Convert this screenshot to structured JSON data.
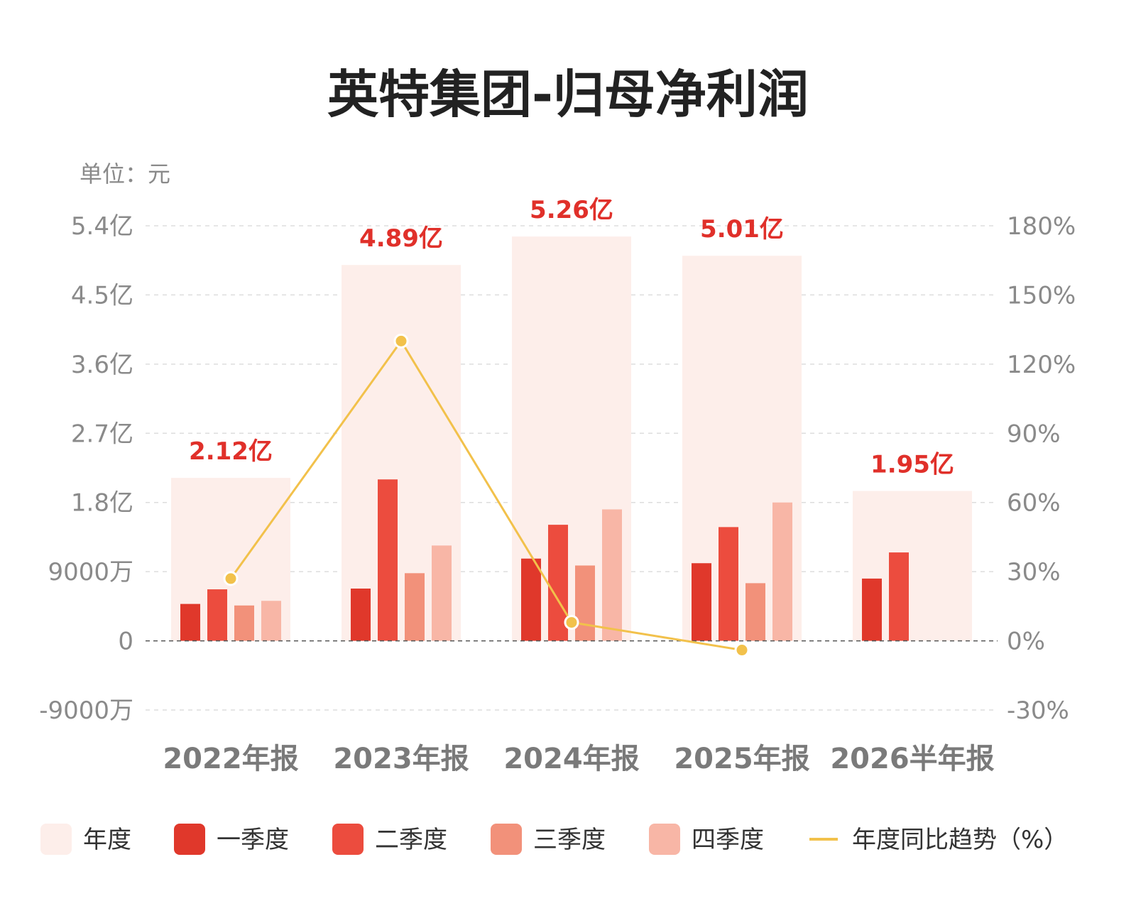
{
  "chart_data": {
    "type": "bar",
    "title": "英特集团-归母净利润",
    "unit_label": "单位：元",
    "categories": [
      "2022年报",
      "2023年报",
      "2024年报",
      "2025年报",
      "2026半年报"
    ],
    "annual": {
      "name": "年度",
      "values": [
        212000000,
        489000000,
        526000000,
        501000000,
        195000000
      ],
      "labels": [
        "2.12亿",
        "4.89亿",
        "5.26亿",
        "5.01亿",
        "1.95亿"
      ]
    },
    "series": [
      {
        "name": "一季度",
        "values": [
          48000000,
          68000000,
          107000000,
          101000000,
          81000000
        ]
      },
      {
        "name": "二季度",
        "values": [
          67000000,
          210000000,
          151000000,
          148000000,
          115000000
        ]
      },
      {
        "name": "三季度",
        "values": [
          46000000,
          88000000,
          98000000,
          75000000,
          null
        ]
      },
      {
        "name": "四季度",
        "values": [
          52000000,
          124000000,
          171000000,
          180000000,
          null
        ]
      }
    ],
    "yoy": {
      "name": "年度同比趋势（%）",
      "values": [
        27,
        130,
        8,
        -4,
        null
      ]
    },
    "y_ticks": [
      "-9000万",
      "0",
      "9000万",
      "1.8亿",
      "2.7亿",
      "3.6亿",
      "4.5亿",
      "5.4亿"
    ],
    "y_tick_values": [
      -90000000,
      0,
      90000000,
      180000000,
      270000000,
      360000000,
      450000000,
      540000000
    ],
    "ylim": [
      -90000000,
      540000000
    ],
    "y2_ticks": [
      "-30%",
      "0%",
      "30%",
      "60%",
      "90%",
      "120%",
      "150%",
      "180%"
    ],
    "y2_tick_values": [
      -30,
      0,
      30,
      60,
      90,
      120,
      150,
      180
    ],
    "y2lim": [
      -30,
      180
    ],
    "grid": true,
    "legend_position": "bottom",
    "colors": {
      "annual": "#fdeeea",
      "q1": "#e0382b",
      "q2": "#ec4c3e",
      "q3": "#f2917a",
      "q4": "#f8b6a6",
      "line": "#f2c14b",
      "total_label": "#e0302a"
    }
  }
}
